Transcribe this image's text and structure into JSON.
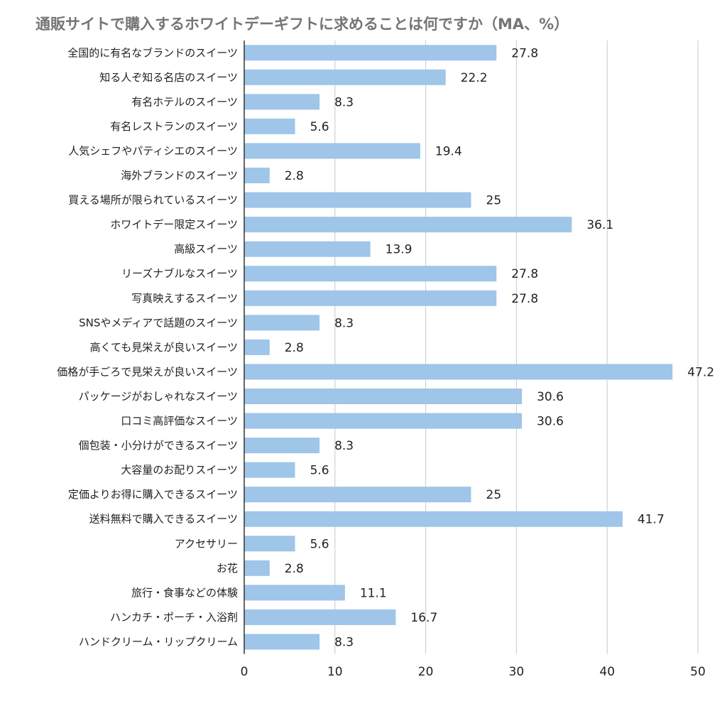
{
  "chart_data": {
    "type": "bar",
    "orientation": "horizontal",
    "title": "通販サイトで購入するホワイトデーギフトに求めることは何ですか（MA、%）",
    "xlabel": "",
    "ylabel": "",
    "xlim": [
      0,
      50
    ],
    "ticks": [
      0,
      10,
      20,
      30,
      40,
      50
    ],
    "grid": true,
    "bar_color": "#9fc5e8",
    "categories": [
      "全国的に有名なブランドのスイーツ",
      "知る人ぞ知る名店のスイーツ",
      "有名ホテルのスイーツ",
      "有名レストランのスイーツ",
      "人気シェフやパティシエのスイーツ",
      "海外ブランドのスイーツ",
      "買える場所が限られているスイーツ",
      "ホワイトデー限定スイーツ",
      "高級スイーツ",
      "リーズナブルなスイーツ",
      "写真映えするスイーツ",
      "SNSやメディアで話題のスイーツ",
      "高くても見栄えが良いスイーツ",
      "価格が手ごろで見栄えが良いスイーツ",
      "パッケージがおしゃれなスイーツ",
      "口コミ高評価なスイーツ",
      "個包装・小分けができるスイーツ",
      "大容量のお配りスイーツ",
      "定価よりお得に購入できるスイーツ",
      "送料無料で購入できるスイーツ",
      "アクセサリー",
      "お花",
      "旅行・食事などの体験",
      "ハンカチ・ポーチ・入浴剤",
      "ハンドクリーム・リップクリーム"
    ],
    "values": [
      27.8,
      22.2,
      8.3,
      5.6,
      19.4,
      2.8,
      25,
      36.1,
      13.9,
      27.8,
      27.8,
      8.3,
      2.8,
      47.2,
      30.6,
      30.6,
      8.3,
      5.6,
      25,
      41.7,
      5.6,
      2.8,
      11.1,
      16.7,
      8.3
    ]
  }
}
